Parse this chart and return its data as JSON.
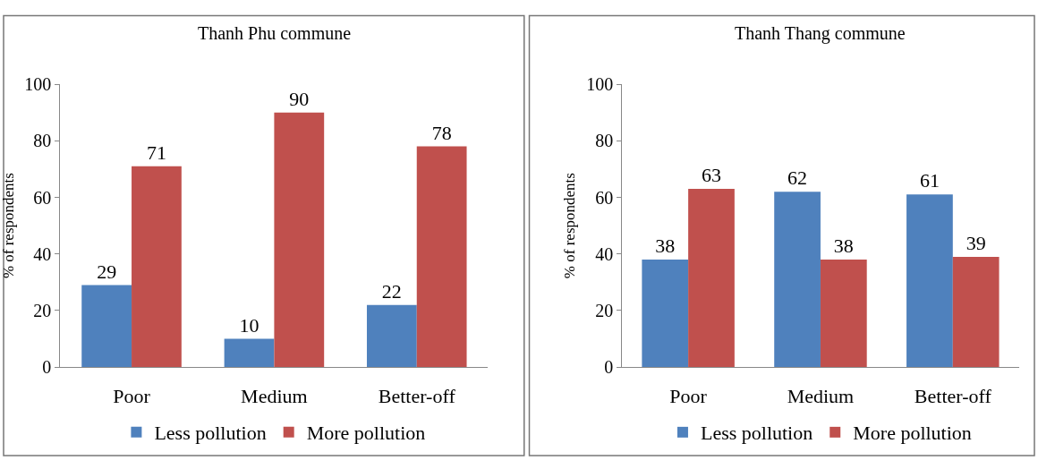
{
  "chart_data": [
    {
      "type": "bar",
      "title": "Thanh Phu commune",
      "ylabel": "% of respondents",
      "categories": [
        "Poor",
        "Medium",
        "Better-off"
      ],
      "series": [
        {
          "name": "Less pollution",
          "color": "#4f81bd",
          "values": [
            29,
            10,
            22
          ]
        },
        {
          "name": "More pollution",
          "color": "#c0504d",
          "values": [
            71,
            90,
            78
          ]
        }
      ],
      "ylim": [
        0,
        100
      ],
      "yticks": [
        0,
        20,
        40,
        60,
        80,
        100
      ],
      "data_labels": true,
      "grid": false,
      "legend": "bottom"
    },
    {
      "type": "bar",
      "title": "Thanh Thang commune",
      "ylabel": "% of respondents",
      "categories": [
        "Poor",
        "Medium",
        "Better-off"
      ],
      "series": [
        {
          "name": "Less pollution",
          "color": "#4f81bd",
          "values": [
            38,
            62,
            61
          ]
        },
        {
          "name": "More pollution",
          "color": "#c0504d",
          "values": [
            63,
            38,
            39
          ]
        }
      ],
      "ylim": [
        0,
        100
      ],
      "yticks": [
        0,
        20,
        40,
        60,
        80,
        100
      ],
      "data_labels": true,
      "grid": false,
      "legend": "bottom"
    }
  ]
}
